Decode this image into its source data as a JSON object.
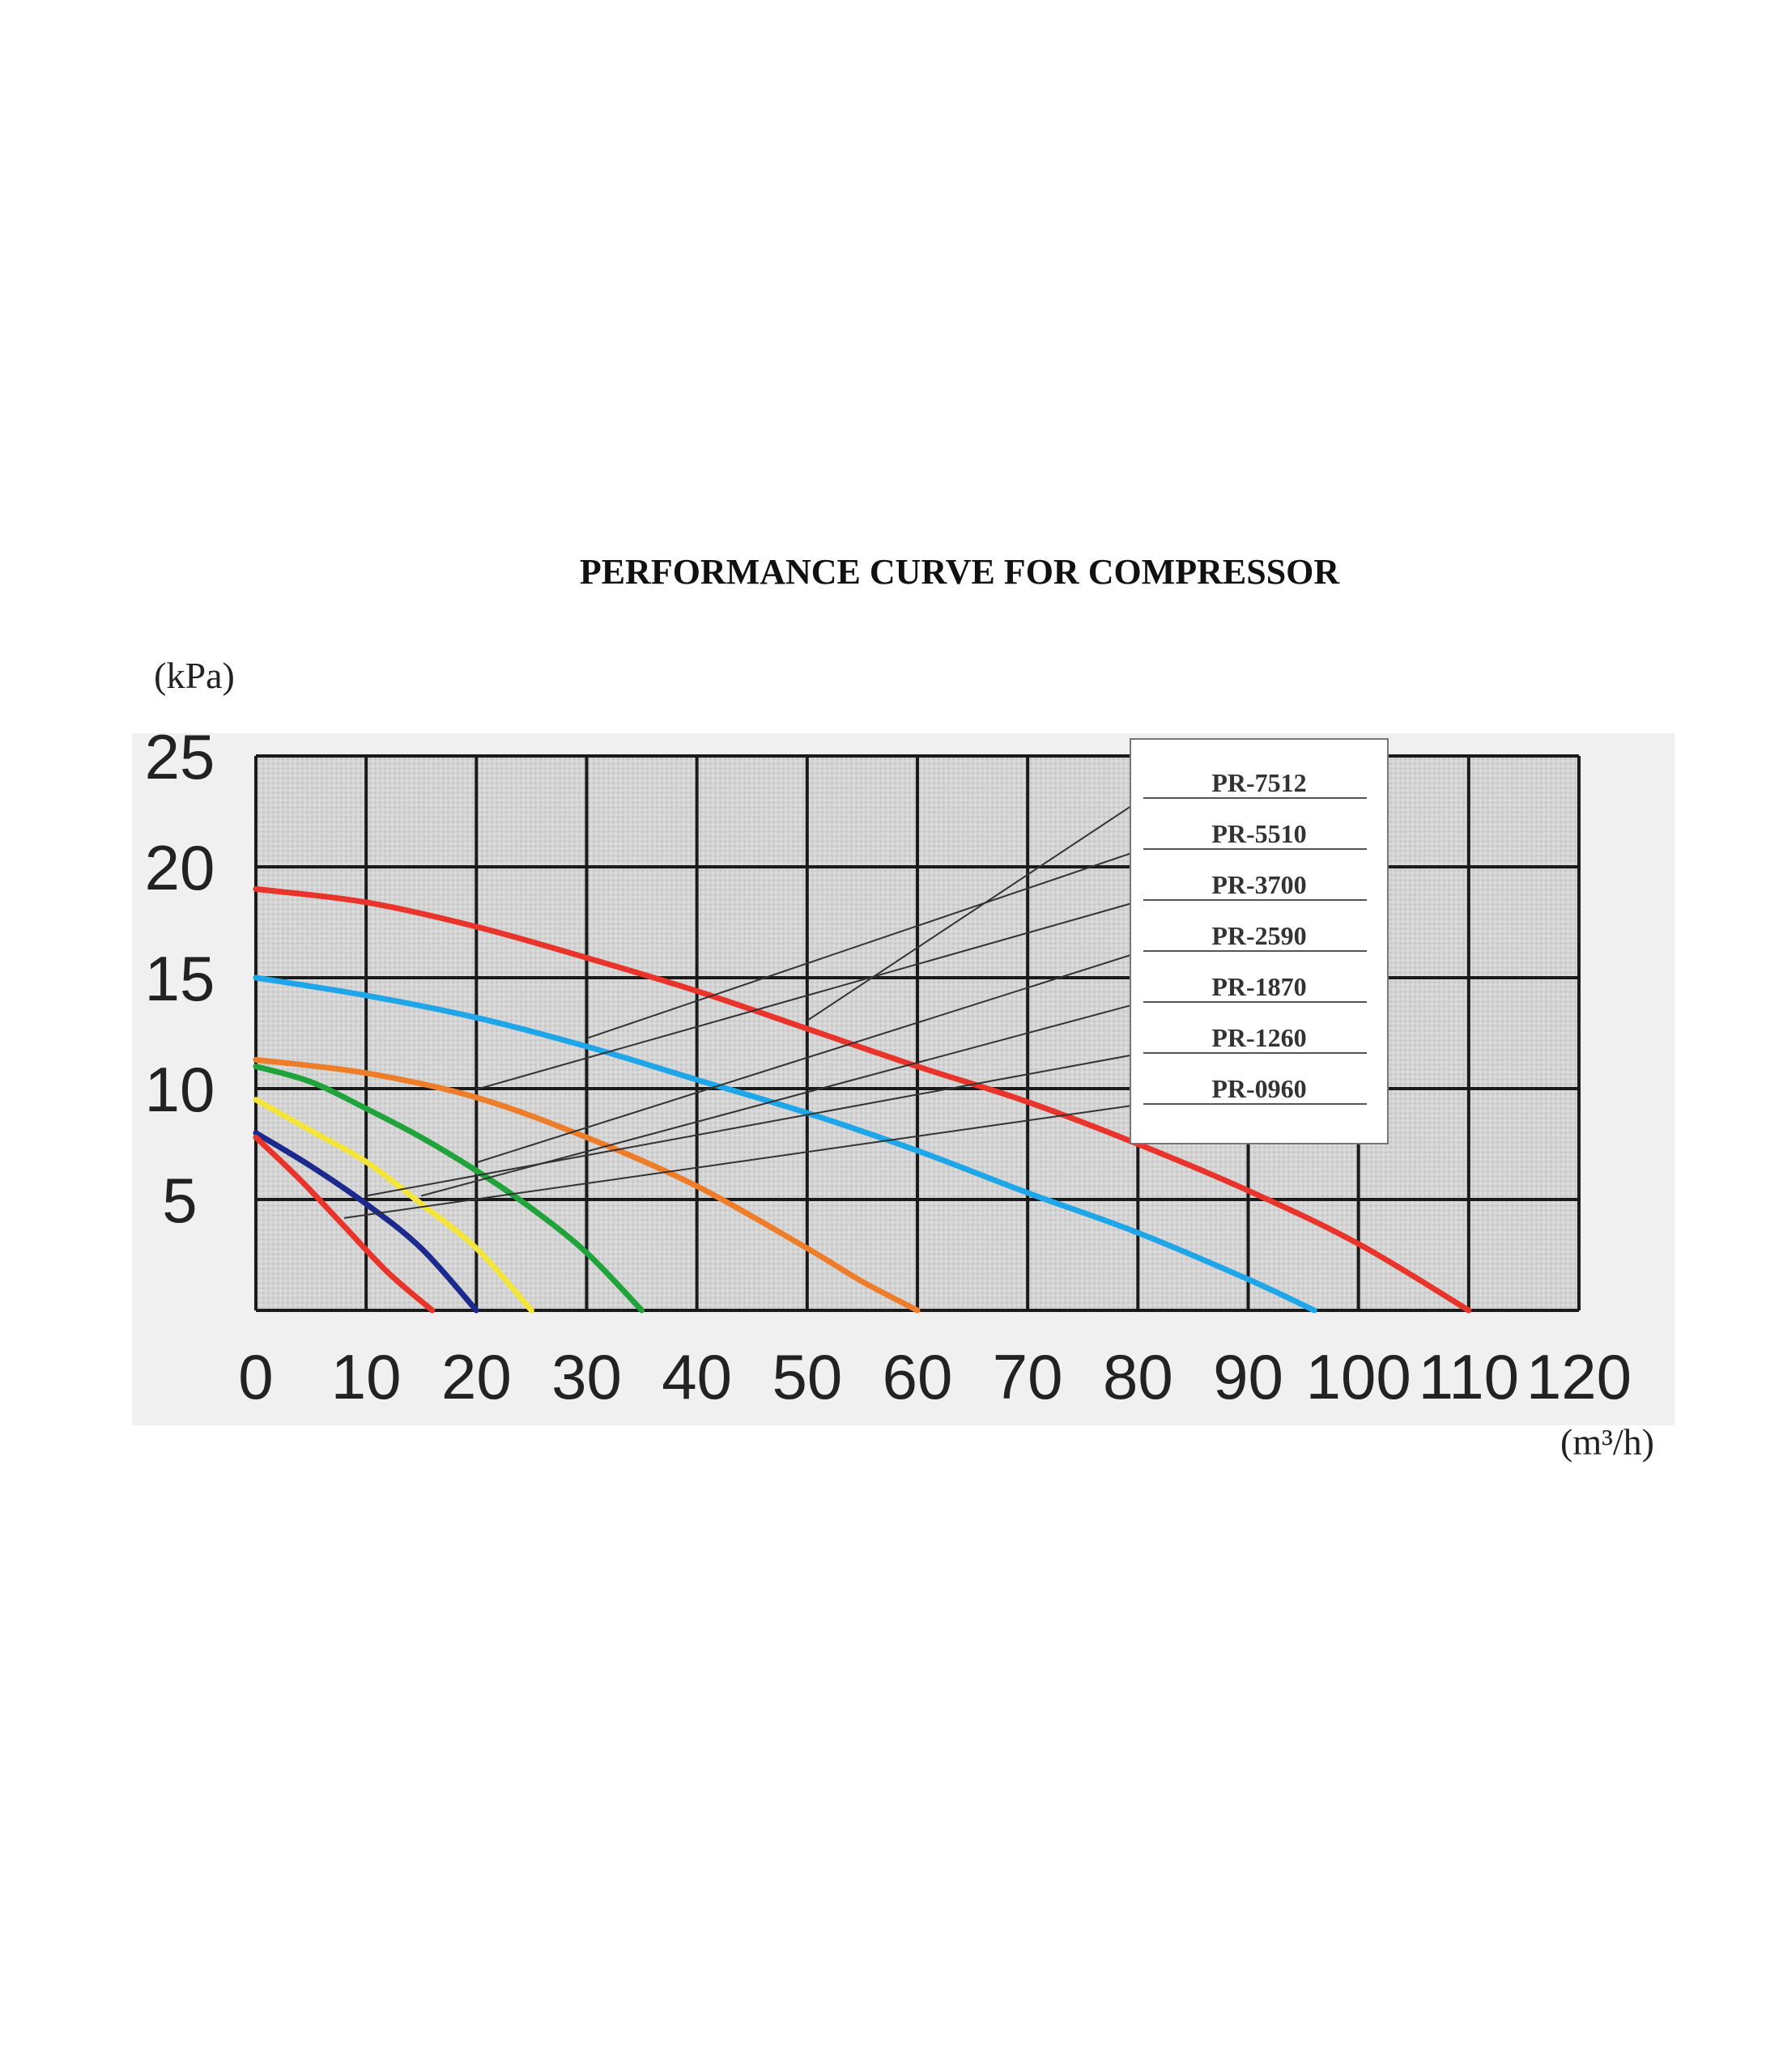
{
  "chart_data": {
    "type": "line",
    "title": "PERFORMANCE CURVE FOR COMPRESSOR",
    "ylabel": "(kPa)",
    "xlabel": "(m³/h)",
    "xlim": [
      0,
      120
    ],
    "ylim": [
      0,
      25
    ],
    "x_ticks": [
      "0",
      "10",
      "20",
      "30",
      "40",
      "50",
      "60",
      "70",
      "80",
      "90",
      "100",
      "110",
      "120"
    ],
    "y_ticks": [
      "5",
      "10",
      "15",
      "20",
      "25"
    ],
    "grid": true,
    "legend_position": "top-right",
    "series": [
      {
        "name": "PR-7512",
        "color": "#e8342a",
        "x": [
          0,
          10,
          20,
          30,
          40,
          50,
          60,
          70,
          80,
          90,
          100,
          110
        ],
        "y": [
          19,
          18.4,
          17.3,
          15.9,
          14.4,
          12.7,
          11,
          9.4,
          7.5,
          5.4,
          3,
          0
        ]
      },
      {
        "name": "PR-5510",
        "color": "#1ea6e8",
        "x": [
          0,
          10,
          20,
          30,
          40,
          50,
          60,
          70,
          80,
          90,
          96
        ],
        "y": [
          15,
          14.2,
          13.2,
          11.9,
          10.4,
          8.9,
          7.2,
          5.3,
          3.5,
          1.4,
          0
        ]
      },
      {
        "name": "PR-3700",
        "color": "#ee7d2a",
        "x": [
          0,
          10,
          20,
          30,
          40,
          50,
          55,
          60
        ],
        "y": [
          11.3,
          10.7,
          9.6,
          7.8,
          5.6,
          2.8,
          1.3,
          0
        ]
      },
      {
        "name": "PR-2590",
        "color": "#1fa33a",
        "x": [
          0,
          5,
          10,
          15,
          20,
          25,
          30,
          35
        ],
        "y": [
          11,
          10.3,
          9.1,
          7.8,
          6.3,
          4.6,
          2.6,
          0
        ]
      },
      {
        "name": "PR-1870",
        "color": "#f4e53a",
        "x": [
          0,
          5,
          10,
          15,
          20,
          25
        ],
        "y": [
          9.5,
          8.1,
          6.7,
          4.8,
          2.8,
          0
        ]
      },
      {
        "name": "PR-1260",
        "color": "#1b2a8c",
        "x": [
          0,
          5,
          10,
          15,
          20
        ],
        "y": [
          8,
          6.5,
          4.8,
          2.8,
          0
        ]
      },
      {
        "name": "PR-0960",
        "color": "#e8342a",
        "x": [
          0,
          4,
          8,
          12,
          16
        ],
        "y": [
          7.8,
          5.9,
          3.8,
          1.7,
          0
        ]
      }
    ]
  }
}
